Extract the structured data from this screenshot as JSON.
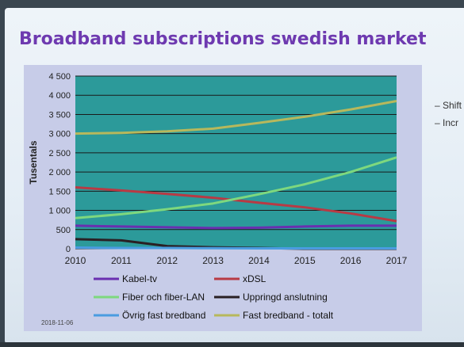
{
  "slide": {
    "title": "Broadband subscriptions swedish market",
    "side_bullets": [
      "– Shift",
      "– Incr"
    ],
    "date_stamp": "2018-11-06"
  },
  "colors": {
    "title": "#6e3ab0",
    "panel": "#c7cce8",
    "plot": "#2c9a9a",
    "kabel": "#6a2fb0",
    "xdsl": "#b83a44",
    "fiber": "#7ed87e",
    "uppringd": "#2a2024",
    "ovrig": "#4a9ce0",
    "total": "#b7b85c"
  },
  "chart_data": {
    "type": "line",
    "x": [
      2010,
      2011,
      2012,
      2013,
      2014,
      2015,
      2016,
      2017
    ],
    "xlim": [
      2010,
      2017
    ],
    "ylim": [
      0,
      4500
    ],
    "yticks": [
      0,
      500,
      1000,
      1500,
      2000,
      2500,
      3000,
      3500,
      4000,
      4500
    ],
    "ytick_labels": [
      "0",
      "500",
      "1 000",
      "1 500",
      "2 000",
      "2 500",
      "3 000",
      "3 500",
      "4 000",
      "4 500"
    ],
    "xtick_labels": [
      "2010",
      "2011",
      "2012",
      "2013",
      "2014",
      "2015",
      "2016",
      "2017"
    ],
    "ylabel": "Tusentals",
    "xlabel": "",
    "grid": true,
    "legend_position": "bottom",
    "series": [
      {
        "name": "Kabel-tv",
        "color_key": "kabel",
        "values": [
          600,
          580,
          560,
          540,
          550,
          580,
          600,
          600
        ]
      },
      {
        "name": "xDSL",
        "color_key": "xdsl",
        "values": [
          1600,
          1520,
          1430,
          1330,
          1200,
          1080,
          920,
          720
        ]
      },
      {
        "name": "Fiber och fiber-LAN",
        "color_key": "fiber",
        "values": [
          800,
          900,
          1030,
          1180,
          1420,
          1680,
          2000,
          2380
        ]
      },
      {
        "name": "Uppringd anslutning",
        "color_key": "uppringd",
        "values": [
          250,
          220,
          70,
          40,
          20,
          0,
          0,
          0
        ]
      },
      {
        "name": "Övrig fast bredband",
        "color_key": "ovrig",
        "values": [
          30,
          20,
          20,
          15,
          10,
          10,
          10,
          10
        ]
      },
      {
        "name": "Fast bredband - totalt",
        "color_key": "total",
        "values": [
          3000,
          3020,
          3060,
          3130,
          3280,
          3440,
          3630,
          3850
        ]
      }
    ]
  }
}
